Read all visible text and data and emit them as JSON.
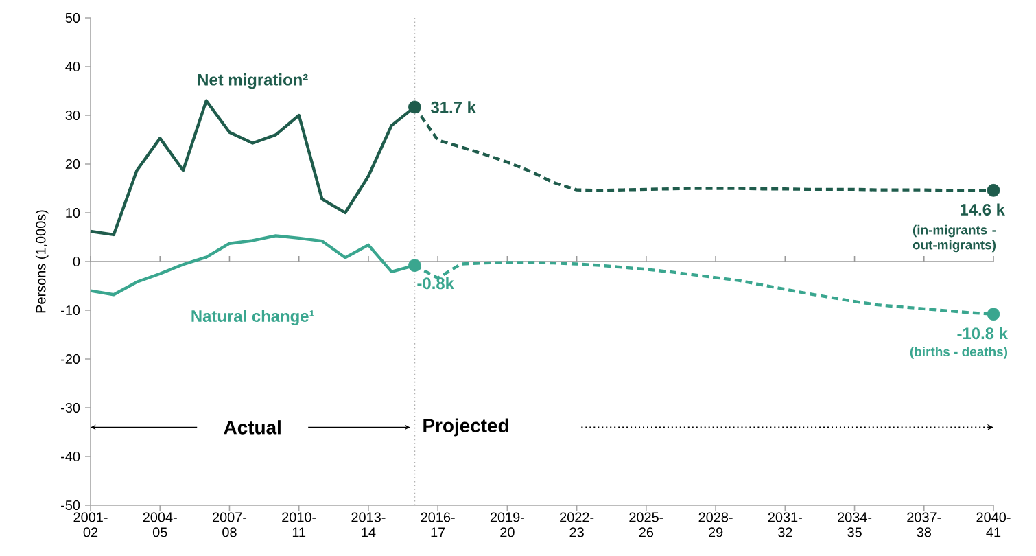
{
  "chart_data": {
    "type": "line",
    "ylabel": "Persons (1,000s)",
    "categories": [
      "2001-02",
      null,
      null,
      "2004-05",
      null,
      null,
      "2007-08",
      null,
      null,
      "2010-11",
      null,
      null,
      "2013-14",
      null,
      null,
      "2016-17",
      null,
      null,
      "2019-20",
      null,
      null,
      "2022-23",
      null,
      null,
      "2025-26",
      null,
      null,
      "2028-29",
      null,
      null,
      "2031-32",
      null,
      null,
      "2034-35",
      null,
      null,
      "2037-38",
      null,
      null,
      "2040-41"
    ],
    "ylim": [
      -50,
      50
    ],
    "yticks": [
      -50,
      -40,
      -30,
      -20,
      -10,
      0,
      10,
      20,
      30,
      40,
      50
    ],
    "series": [
      {
        "name": "Net migration²",
        "color": "#1f5c4c",
        "line_style": "solid",
        "values": [
          6.2,
          5.5,
          18.7,
          25.3,
          18.7,
          33.0,
          26.5,
          24.3,
          26.0,
          30.0,
          12.8,
          10.0,
          17.5,
          27.9,
          31.7,
          null,
          null,
          null,
          null,
          null,
          null,
          null,
          null,
          null,
          null,
          null,
          null,
          null,
          null,
          null,
          null,
          null,
          null,
          null,
          null,
          null,
          null,
          null,
          null,
          null
        ]
      },
      {
        "color": "#1f5c4c",
        "line_style": "dashed",
        "values": [
          null,
          null,
          null,
          null,
          null,
          null,
          null,
          null,
          null,
          null,
          null,
          null,
          null,
          null,
          31.7,
          24.9,
          23.5,
          22.0,
          20.4,
          18.5,
          16.2,
          14.7,
          14.6,
          14.7,
          14.8,
          14.9,
          15.0,
          15.0,
          15.0,
          14.9,
          14.9,
          14.8,
          14.8,
          14.8,
          14.7,
          14.7,
          14.7,
          14.6,
          14.6,
          14.6
        ]
      },
      {
        "name": "Natural change¹",
        "color": "#3aa68f",
        "line_style": "solid",
        "values": [
          -6.0,
          -6.8,
          -4.2,
          -2.5,
          -0.6,
          0.9,
          3.7,
          4.3,
          5.3,
          4.8,
          4.2,
          0.8,
          3.4,
          -2.1,
          -0.8,
          null,
          null,
          null,
          null,
          null,
          null,
          null,
          null,
          null,
          null,
          null,
          null,
          null,
          null,
          null,
          null,
          null,
          null,
          null,
          null,
          null,
          null,
          null,
          null,
          null
        ]
      },
      {
        "color": "#3aa68f",
        "line_style": "dashed",
        "values": [
          null,
          null,
          null,
          null,
          null,
          null,
          null,
          null,
          null,
          null,
          null,
          null,
          null,
          null,
          -0.8,
          -3.4,
          -0.5,
          -0.3,
          -0.2,
          -0.2,
          -0.3,
          -0.5,
          -0.8,
          -1.2,
          -1.6,
          -2.1,
          -2.7,
          -3.3,
          -3.9,
          -4.8,
          -5.7,
          -6.6,
          -7.4,
          -8.2,
          -8.9,
          -9.3,
          -9.7,
          -10.1,
          -10.5,
          -10.8
        ]
      },
      {
        "type": "scatter",
        "marker": "circle",
        "color": "#1f5c4c",
        "values": [
          null,
          null,
          null,
          null,
          null,
          null,
          null,
          null,
          null,
          null,
          null,
          null,
          null,
          null,
          31.7,
          null,
          null,
          null,
          null,
          null,
          null,
          null,
          null,
          null,
          null,
          null,
          null,
          null,
          null,
          null,
          null,
          null,
          null,
          null,
          null,
          null,
          null,
          null,
          null,
          14.6
        ]
      },
      {
        "type": "scatter",
        "marker": "circle",
        "color": "#3aa68f",
        "values": [
          null,
          null,
          null,
          null,
          null,
          null,
          null,
          null,
          null,
          null,
          null,
          null,
          null,
          null,
          -0.8,
          null,
          null,
          null,
          null,
          null,
          null,
          null,
          null,
          null,
          null,
          null,
          null,
          null,
          null,
          null,
          null,
          null,
          null,
          null,
          null,
          null,
          null,
          null,
          null,
          -10.8
        ]
      }
    ],
    "ref_lines": [
      {
        "axis": "y",
        "value": 0,
        "color": "#999999",
        "line_style": "solid"
      }
    ],
    "annotations": [
      "31.7 k",
      "-0.8k",
      {
        "text": "14.6 k",
        "x": "2040-41",
        "y": 14.6
      },
      "(in-migrants - out-migrants)",
      {
        "text": "-10.8 k",
        "x": "2040-41",
        "y": -10.8
      },
      "(births - deaths)",
      "Actual",
      "Projected"
    ]
  }
}
